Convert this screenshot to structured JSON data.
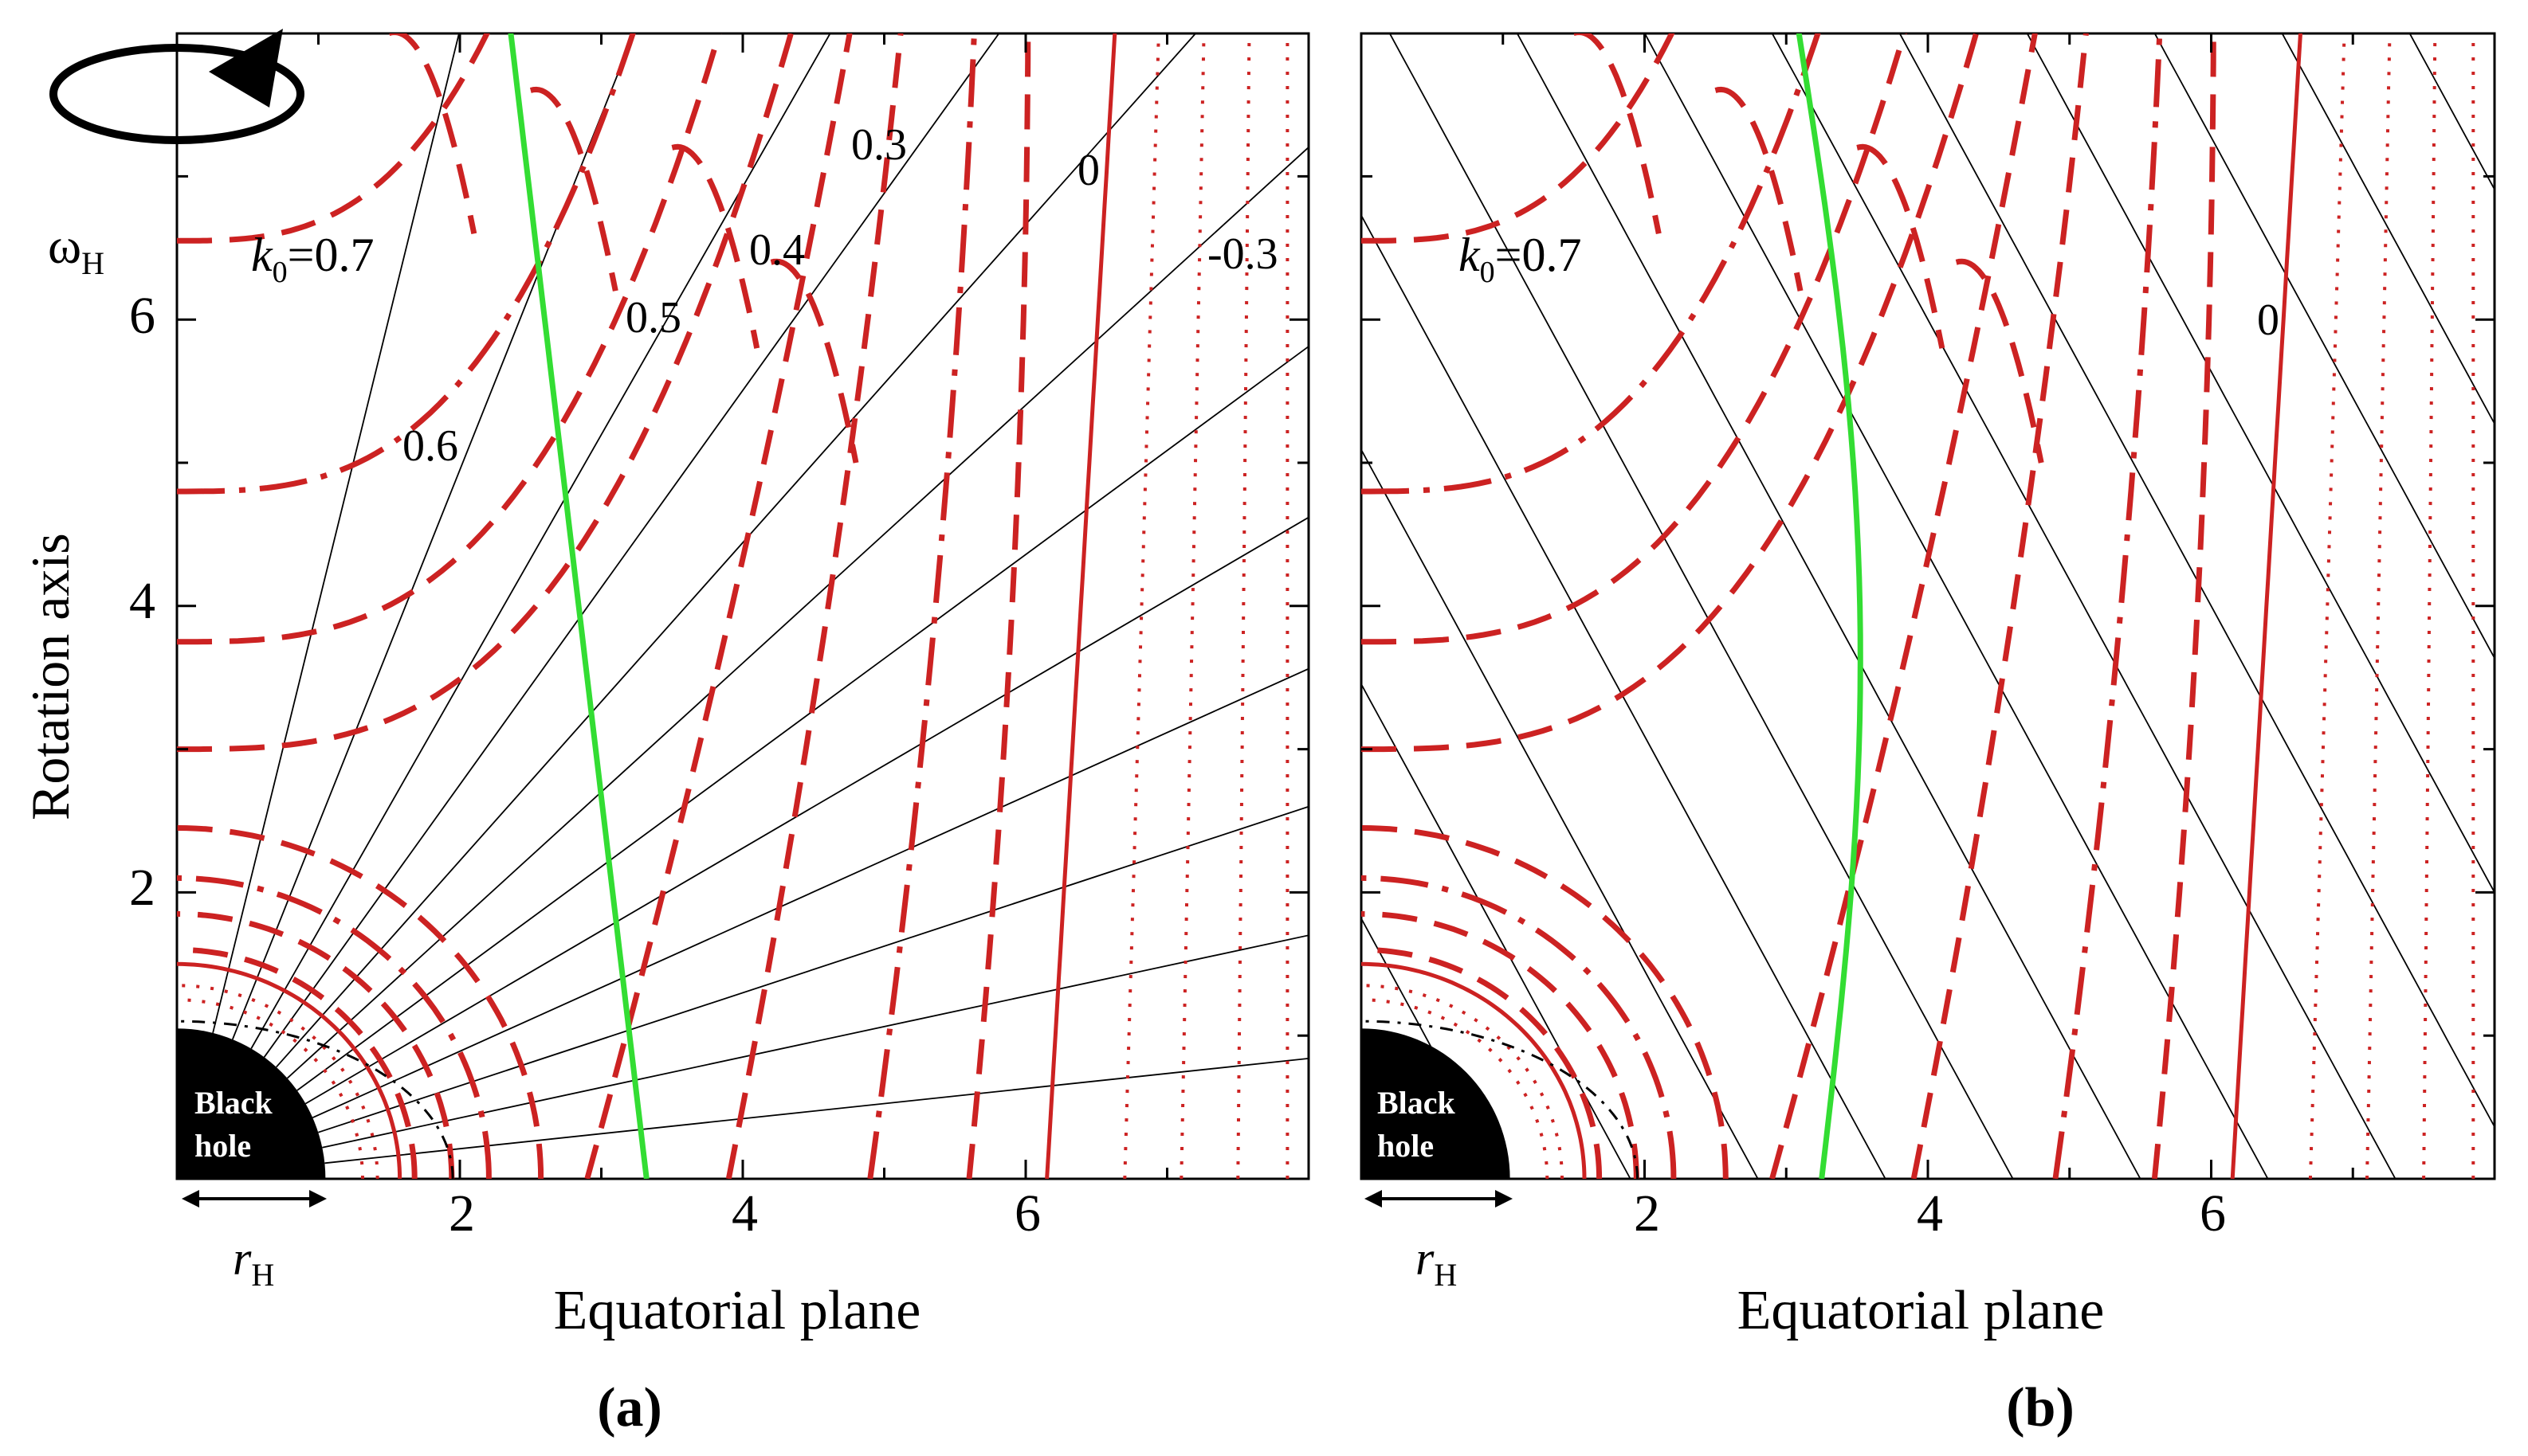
{
  "figure": {
    "y_axis_label": "Rotation axis",
    "x_axis_label": "Equatorial plane",
    "rotation_symbol": "ω",
    "rotation_subscript": "H",
    "radius_symbol": "r",
    "radius_subscript": "H",
    "black_hole_line1": "Black",
    "black_hole_line2": "hole",
    "y_ticks": [
      "2",
      "4",
      "6"
    ],
    "x_ticks": [
      "2",
      "4",
      "6"
    ],
    "x_range": [
      0,
      8
    ],
    "y_range": [
      0,
      8
    ],
    "horizon_radius": 1.05,
    "colors": {
      "potential_contours": "#cc2222",
      "light_surface": "#33dd33",
      "field_lines": "#000000",
      "black_hole": "#000000"
    }
  },
  "panels": [
    {
      "id": "a",
      "label": "(a)",
      "k0_symbol": "k",
      "k0_subscript": "0",
      "k0_value": "=0.7",
      "contour_labels": [
        "0.6",
        "0.5",
        "0.4",
        "0.3",
        "0",
        "-0.3"
      ],
      "field_line_type": "radial"
    },
    {
      "id": "b",
      "label": "(b)",
      "k0_symbol": "k",
      "k0_subscript": "0",
      "k0_value": "=0.7",
      "contour_labels": [
        "0"
      ],
      "field_line_type": "parabolic"
    }
  ]
}
